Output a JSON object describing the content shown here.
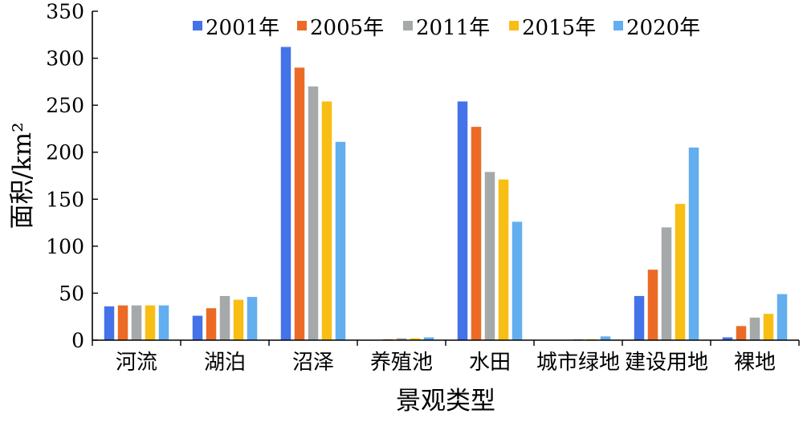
{
  "chart_data": {
    "type": "bar",
    "title": "",
    "xlabel": "景观类型",
    "ylabel": "面积/km²",
    "ylim": [
      0,
      350
    ],
    "yticks": [
      0,
      50,
      100,
      150,
      200,
      250,
      300,
      350
    ],
    "grid": false,
    "legend_position": "top",
    "categories": [
      "河流",
      "湖泊",
      "沼泽",
      "养殖池",
      "水田",
      "城市绿地",
      "建设用地",
      "裸地"
    ],
    "series": [
      {
        "name": "2001年",
        "color": "#4472E8",
        "values": [
          36,
          26,
          312,
          0,
          254,
          0,
          47,
          3
        ]
      },
      {
        "name": "2005年",
        "color": "#EB6B26",
        "values": [
          37,
          34,
          290,
          1,
          227,
          0,
          75,
          15
        ]
      },
      {
        "name": "2011年",
        "color": "#A5A9A9",
        "values": [
          37,
          47,
          270,
          2,
          179,
          1,
          120,
          24
        ]
      },
      {
        "name": "2015年",
        "color": "#F9BE14",
        "values": [
          37,
          43,
          254,
          2,
          171,
          1,
          145,
          28
        ]
      },
      {
        "name": "2020年",
        "color": "#63AEEF",
        "values": [
          37,
          46,
          211,
          3,
          126,
          4,
          205,
          49
        ]
      }
    ]
  }
}
